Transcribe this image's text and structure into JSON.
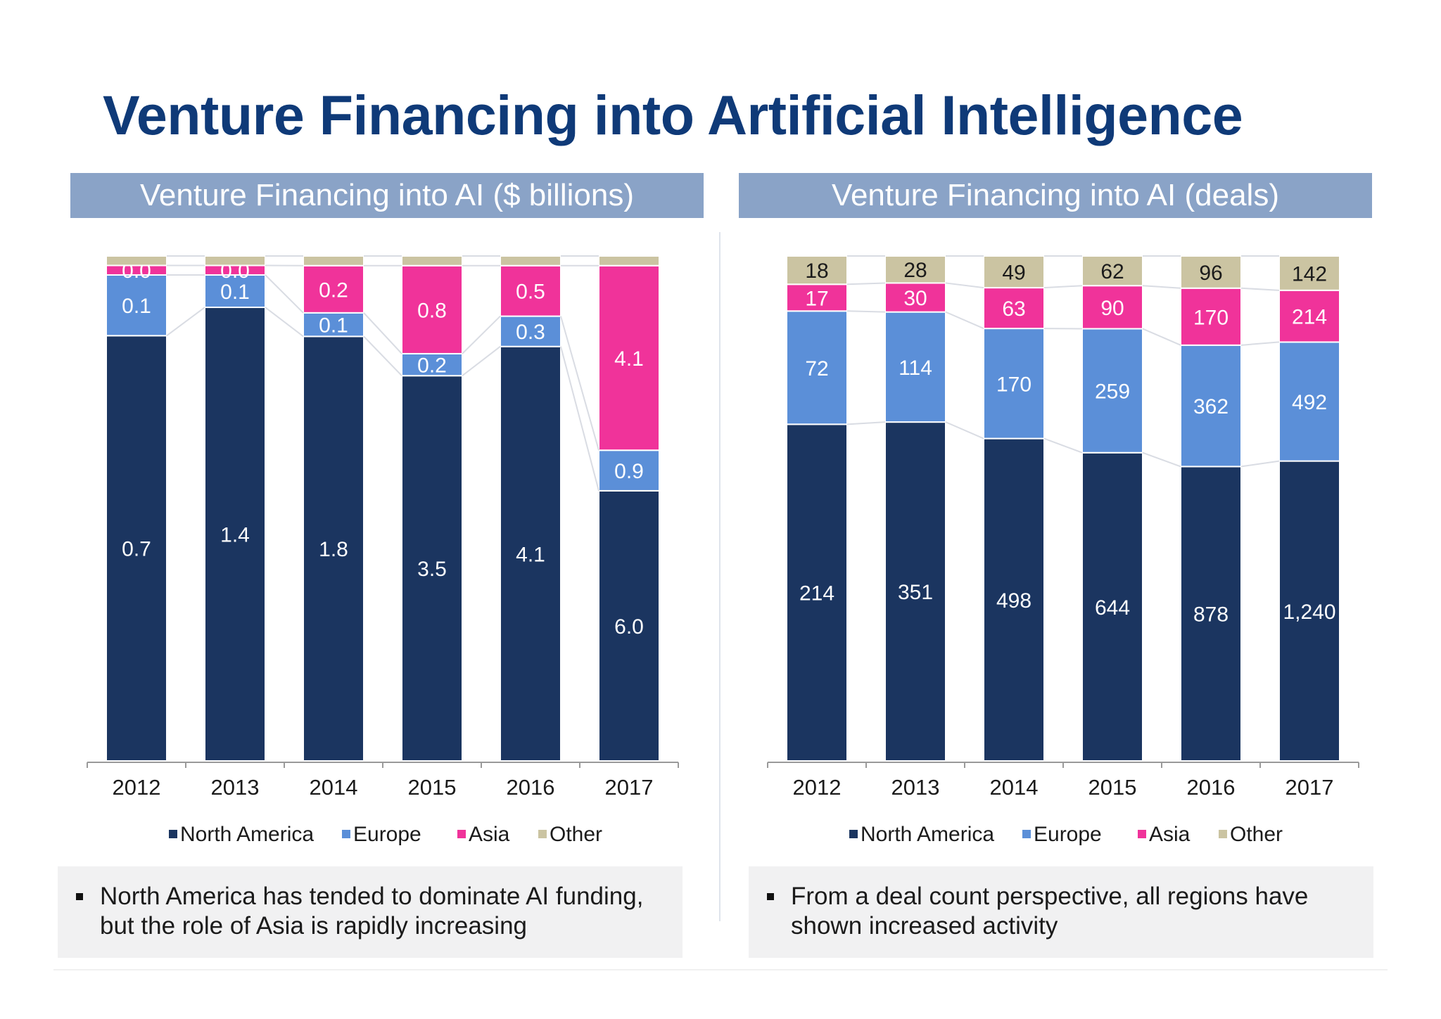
{
  "title": "Venture Financing into Artificial Intelligence",
  "colors": {
    "north_america": "#1b3560",
    "europe": "#5b8fd8",
    "asia": "#f0339a",
    "other": "#cbc4a2",
    "title": "#0f3a78",
    "header": "#8aa3c7"
  },
  "chart_data": [
    {
      "type": "bar",
      "stacked": true,
      "title": "Venture Financing into AI ($ billions)",
      "categories": [
        "2012",
        "2013",
        "2014",
        "2015",
        "2016",
        "2017"
      ],
      "series": [
        {
          "name": "North America",
          "values": [
            0.7,
            1.4,
            1.8,
            3.5,
            4.1,
            6.0
          ],
          "labels": [
            "0.7",
            "1.4",
            "1.8",
            "3.5",
            "4.1",
            "6.0"
          ]
        },
        {
          "name": "Europe",
          "values": [
            0.1,
            0.1,
            0.1,
            0.2,
            0.3,
            0.9
          ],
          "labels": [
            "0.1",
            "0.1",
            "0.1",
            "0.2",
            "0.3",
            "0.9"
          ]
        },
        {
          "name": "Asia",
          "values": [
            0.0,
            0.0,
            0.2,
            0.8,
            0.5,
            4.1
          ],
          "labels": [
            "0.0",
            "0.0",
            "0.2",
            "0.8",
            "0.5",
            "4.1"
          ]
        },
        {
          "name": "Other",
          "values": [
            0.0,
            0.0,
            0.0,
            0.0,
            0.0,
            0.0
          ],
          "labels": [
            "",
            "",
            "",
            "",
            "",
            ""
          ]
        }
      ],
      "normalized_100_percent": true,
      "legend_position": "bottom",
      "grid": false
    },
    {
      "type": "bar",
      "stacked": true,
      "title": "Venture Financing into AI (deals)",
      "categories": [
        "2012",
        "2013",
        "2014",
        "2015",
        "2016",
        "2017"
      ],
      "series": [
        {
          "name": "North America",
          "values": [
            214,
            351,
            498,
            644,
            878,
            1240
          ],
          "labels": [
            "214",
            "351",
            "498",
            "644",
            "878",
            "1,240"
          ]
        },
        {
          "name": "Europe",
          "values": [
            72,
            114,
            170,
            259,
            362,
            492
          ],
          "labels": [
            "72",
            "114",
            "170",
            "259",
            "362",
            "492"
          ]
        },
        {
          "name": "Asia",
          "values": [
            17,
            30,
            63,
            90,
            170,
            214
          ],
          "labels": [
            "17",
            "30",
            "63",
            "90",
            "170",
            "214"
          ]
        },
        {
          "name": "Other",
          "values": [
            18,
            28,
            49,
            62,
            96,
            142
          ],
          "labels": [
            "18",
            "28",
            "49",
            "62",
            "96",
            "142"
          ]
        }
      ],
      "normalized_100_percent": true,
      "legend_position": "bottom",
      "grid": false
    }
  ],
  "notes": [
    {
      "line1": "North America has tended to dominate AI funding,",
      "line2": "but the role of Asia is rapidly increasing"
    },
    {
      "line1": "From a deal count perspective, all regions have",
      "line2": "shown increased activity"
    }
  ]
}
